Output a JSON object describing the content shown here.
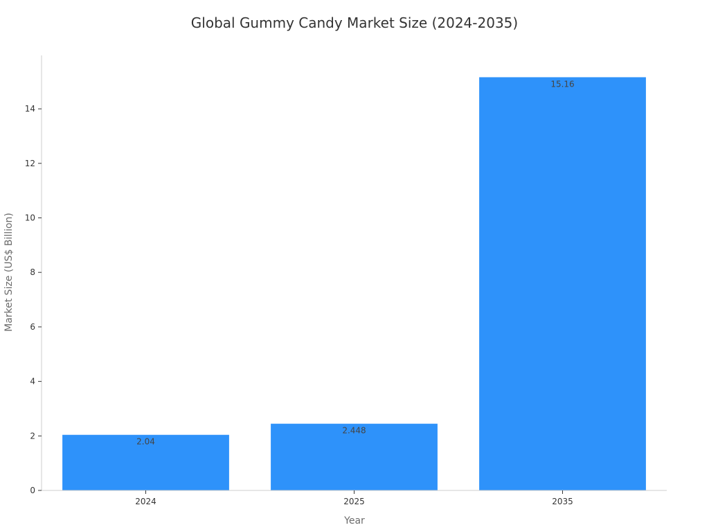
{
  "chart_data": {
    "type": "bar",
    "title": "Global Gummy Candy Market Size (2024-2035)",
    "xlabel": "Year",
    "ylabel": "Market Size (US$ Billion)",
    "categories": [
      "2024",
      "2025",
      "2035"
    ],
    "values": [
      2.04,
      2.448,
      15.16
    ],
    "value_labels": [
      "2.04",
      "2.448",
      "15.16"
    ],
    "yticks": [
      0,
      2,
      4,
      6,
      8,
      10,
      12,
      14
    ],
    "ylim": [
      0,
      15.96
    ],
    "grid": false,
    "bar_color": "#2e92fa",
    "axis_color": "#cccccc",
    "text_color": "#333333"
  }
}
